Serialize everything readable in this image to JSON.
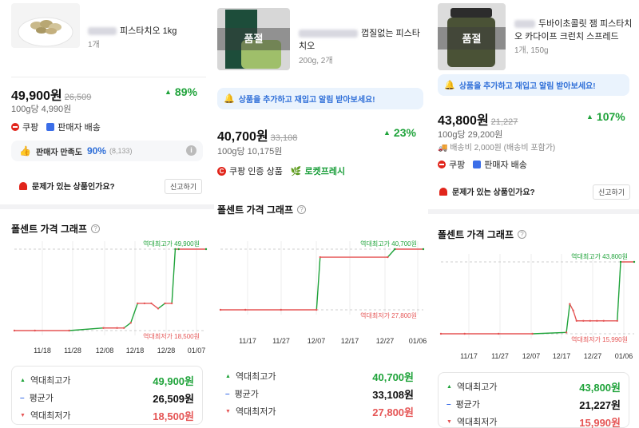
{
  "products": [
    {
      "title": "피스타치오 1kg",
      "sub": "1개",
      "price": "49,900원",
      "orig": "26,509",
      "pct": "89%",
      "unit": "100g당 4,990원",
      "badge1": "쿠팡",
      "badge2": "판매자 배송",
      "satisfaction_label": "판매자 만족도",
      "satisfaction_value": "90%",
      "satisfaction_count": "(8,133)",
      "report": "문제가 있는 상품인가요?",
      "report_btn": "신고하기",
      "graph_title": "폴센트 가격 그래프",
      "max_label": "역대최고가 49,900원",
      "min_label": "역대최저가 18,500원",
      "xticks": [
        "11/18",
        "11/28",
        "12/08",
        "12/18",
        "12/28",
        "01/07"
      ],
      "stats": [
        {
          "label": "역대최고가",
          "value": "49,900원"
        },
        {
          "label": "평균가",
          "value": "26,509원"
        },
        {
          "label": "역대최저가",
          "value": "18,500원"
        }
      ]
    },
    {
      "title": "껍질없는 피스타치오",
      "thumb_text": "품절",
      "sub": "200g, 2개",
      "alert": "상품을 추가하고 재입고 알림 받아보세요!",
      "price": "40,700원",
      "orig": "33,108",
      "pct": "23%",
      "unit": "100g당 10,175원",
      "badge1": "쿠팡 인증 상품",
      "badge2": "로켓프레시",
      "graph_title": "폴센트 가격 그래프",
      "max_label": "역대최고가 40,700원",
      "min_label": "역대최저가 27,800원",
      "xticks": [
        "11/17",
        "11/27",
        "12/07",
        "12/17",
        "12/27",
        "01/06"
      ],
      "stats": [
        {
          "label": "역대최고가",
          "value": "40,700원"
        },
        {
          "label": "평균가",
          "value": "33,108원"
        },
        {
          "label": "역대최저가",
          "value": "27,800원"
        }
      ]
    },
    {
      "title": "두바이초콜릿 잼 피스타치오 카다이프 크런치 스프레드",
      "thumb_text": "품절",
      "sub": "1개, 150g",
      "alert": "상품을 추가하고 재입고 알림 받아보세요!",
      "price": "43,800원",
      "orig": "21,227",
      "pct": "107%",
      "unit": "100g당 29,200원",
      "ship": "배송비 2,000원 (배송비 포함가)",
      "badge1": "쿠팡",
      "badge2": "판매자 배송",
      "report": "문제가 있는 상품인가요?",
      "report_btn": "신고하기",
      "graph_title": "폴센트 가격 그래프",
      "max_label": "역대최고가 43,800원",
      "min_label": "역대최저가 15,990원",
      "xticks": [
        "11/17",
        "11/27",
        "12/07",
        "12/17",
        "12/27",
        "01/06"
      ],
      "stats": [
        {
          "label": "역대최고가",
          "value": "43,800원"
        },
        {
          "label": "평균가",
          "value": "21,227원"
        },
        {
          "label": "역대최저가",
          "value": "15,990원"
        }
      ]
    }
  ],
  "colors": {
    "up": "#1fa33a",
    "down": "#e55555",
    "avg": "#3b6ee8",
    "alert_bg": "#eaf3fd",
    "alert_text": "#2f6fd8"
  },
  "chart_data": [
    {
      "type": "line",
      "title": "폴센트 가격 그래프",
      "x": [
        "11/12",
        "11/18",
        "11/28",
        "12/08",
        "12/12",
        "12/14",
        "12/16",
        "12/18",
        "12/20",
        "12/22",
        "12/24",
        "12/26",
        "12/28",
        "12/29",
        "12/30",
        "01/07"
      ],
      "y": [
        18500,
        18500,
        18500,
        19500,
        19500,
        19500,
        21500,
        29000,
        29000,
        29000,
        27000,
        29000,
        29000,
        49900,
        49900,
        49900
      ],
      "ylim": [
        18500,
        49900
      ],
      "xlim": [
        "11/12",
        "01/07"
      ],
      "grid": true
    },
    {
      "type": "line",
      "title": "폴센트 가격 그래프",
      "x": [
        "11/10",
        "11/17",
        "11/27",
        "12/07",
        "12/08",
        "12/27",
        "12/29",
        "01/06"
      ],
      "y": [
        27800,
        27800,
        27800,
        27800,
        39000,
        39000,
        40700,
        40700
      ],
      "ylim": [
        27800,
        40700
      ],
      "xlim": [
        "11/10",
        "01/06"
      ],
      "grid": true
    },
    {
      "type": "line",
      "title": "폴센트 가격 그래프",
      "x": [
        "11/10",
        "11/17",
        "11/27",
        "12/07",
        "12/17",
        "12/18",
        "12/19",
        "12/20",
        "12/22",
        "12/24",
        "12/26",
        "12/28",
        "01/01",
        "01/02",
        "01/06"
      ],
      "y": [
        15990,
        15990,
        15990,
        15990,
        16500,
        27500,
        25000,
        21000,
        21000,
        21000,
        21000,
        21000,
        21000,
        43800,
        43800
      ],
      "ylim": [
        15990,
        43800
      ],
      "xlim": [
        "11/10",
        "01/06"
      ],
      "grid": true
    }
  ]
}
